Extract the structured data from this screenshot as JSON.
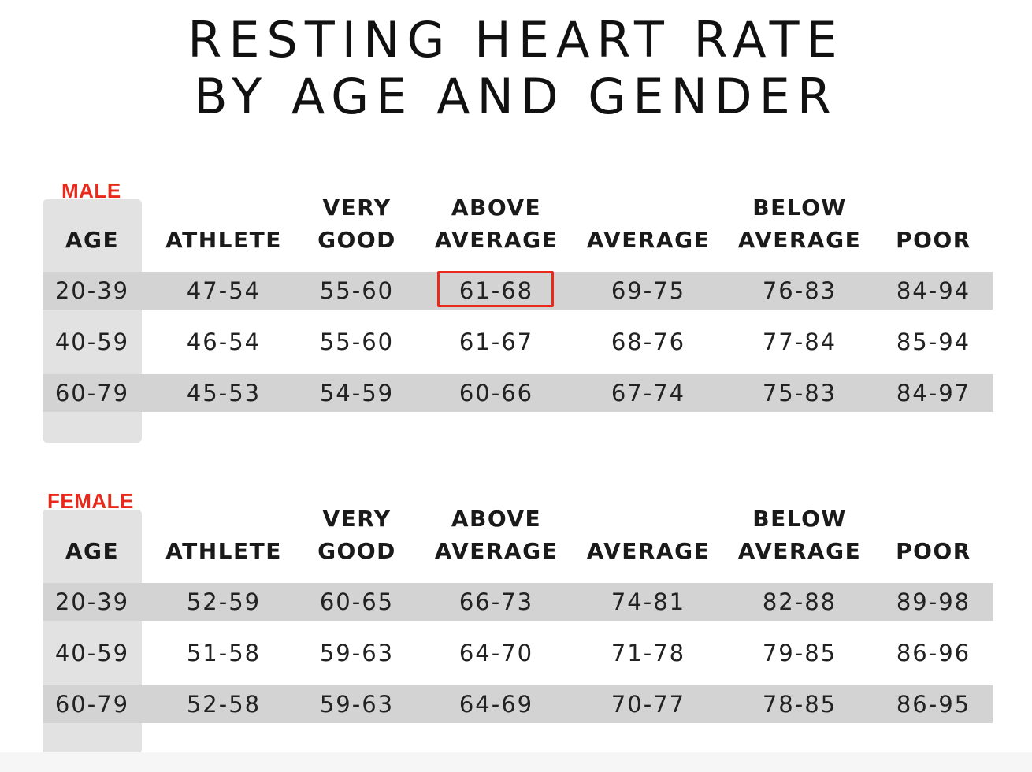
{
  "title": {
    "line1": "RESTING HEART RATE",
    "line2": "BY AGE AND GENDER"
  },
  "colors": {
    "accent": "#e8291c",
    "row_band": "#d3d3d3",
    "age_column": "#e2e2e2",
    "text": "#1a1a1a"
  },
  "highlight": {
    "section": "male",
    "row": 0,
    "column": "ABOVE AVERAGE",
    "value": "61-68",
    "color": "#e8291c"
  },
  "chart_data": {
    "type": "table",
    "title": "RESTING HEART RATE BY AGE AND GENDER",
    "columns": [
      {
        "id": "age",
        "lines": [
          "",
          "AGE"
        ]
      },
      {
        "id": "athlete",
        "lines": [
          "",
          "ATHLETE"
        ]
      },
      {
        "id": "very_good",
        "lines": [
          "VERY",
          "GOOD"
        ]
      },
      {
        "id": "above_average",
        "lines": [
          "ABOVE",
          "AVERAGE"
        ]
      },
      {
        "id": "average",
        "lines": [
          "",
          "AVERAGE"
        ]
      },
      {
        "id": "below_average",
        "lines": [
          "BELOW",
          "AVERAGE"
        ]
      },
      {
        "id": "poor",
        "lines": [
          "",
          "POOR"
        ]
      }
    ],
    "sections": [
      {
        "id": "male",
        "label": "MALE",
        "rows": [
          [
            "20-39",
            "47-54",
            "55-60",
            "61-68",
            "69-75",
            "76-83",
            "84-94"
          ],
          [
            "40-59",
            "46-54",
            "55-60",
            "61-67",
            "68-76",
            "77-84",
            "85-94"
          ],
          [
            "60-79",
            "45-53",
            "54-59",
            "60-66",
            "67-74",
            "75-83",
            "84-97"
          ]
        ]
      },
      {
        "id": "female",
        "label": "FEMALE",
        "rows": [
          [
            "20-39",
            "52-59",
            "60-65",
            "66-73",
            "74-81",
            "82-88",
            "89-98"
          ],
          [
            "40-59",
            "51-58",
            "59-63",
            "64-70",
            "71-78",
            "79-85",
            "86-96"
          ],
          [
            "60-79",
            "52-58",
            "59-63",
            "64-69",
            "70-77",
            "78-85",
            "86-95"
          ]
        ]
      }
    ]
  }
}
